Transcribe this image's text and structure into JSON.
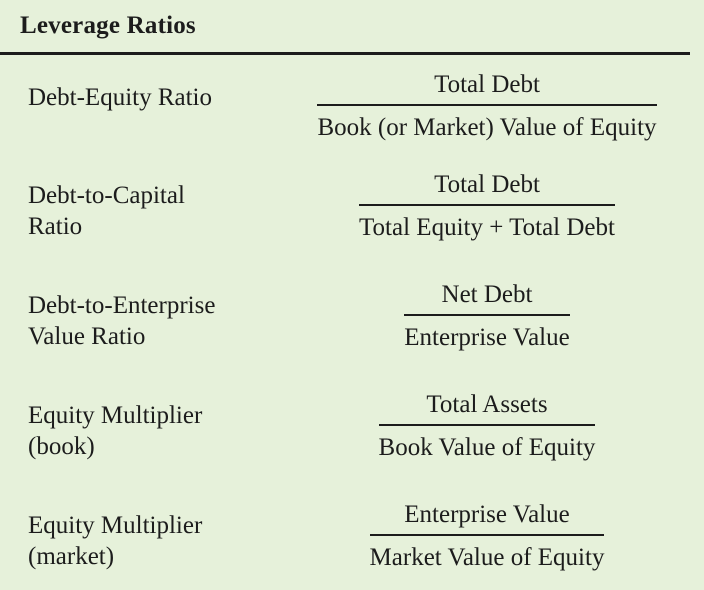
{
  "header": {
    "title": "Leverage Ratios"
  },
  "ratios": [
    {
      "label_lines": [
        "Debt-Equity Ratio"
      ],
      "numerator": "Total Debt",
      "denominator": "Book (or Market) Value of Equity"
    },
    {
      "label_lines": [
        "Debt-to-Capital",
        "Ratio"
      ],
      "numerator": "Total Debt",
      "denominator": "Total Equity + Total Debt"
    },
    {
      "label_lines": [
        "Debt-to-Enterprise",
        "Value Ratio"
      ],
      "numerator": "Net Debt",
      "denominator": "Enterprise Value"
    },
    {
      "label_lines": [
        "Equity Multiplier",
        "(book)"
      ],
      "numerator": "Total Assets",
      "denominator": "Book Value of Equity"
    },
    {
      "label_lines": [
        "Equity Multiplier",
        "(market)"
      ],
      "numerator": "Enterprise Value",
      "denominator": "Market Value of Equity"
    }
  ],
  "colors": {
    "background": "#e6f1da",
    "text": "#1c1c1c"
  }
}
